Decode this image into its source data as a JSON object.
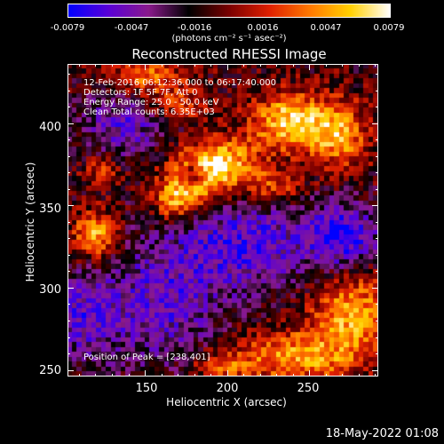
{
  "chart_data": {
    "type": "heatmap",
    "title": "Reconstructed RHESSI Image",
    "xlabel": "Heliocentric X (arcsec)",
    "ylabel": "Heliocentric Y (arcsec)",
    "xlim": [
      103,
      292
    ],
    "ylim": [
      246,
      436
    ],
    "x_ticks": [
      150,
      200,
      250
    ],
    "y_ticks": [
      250,
      300,
      350,
      400
    ],
    "colorbar": {
      "range": [
        -0.0079,
        0.0079
      ],
      "tick_values": [
        -0.0079,
        -0.0047,
        -0.0016,
        0.0016,
        0.0047,
        0.0079
      ],
      "tick_labels": [
        "-0.0079",
        "-0.0047",
        "-0.0016",
        "0.0016",
        "0.0047",
        "0.0079"
      ],
      "units": "(photons cm⁻² s⁻¹ asec⁻²)",
      "colors": [
        "#0000ff",
        "#5a00d8",
        "#8a1a8c",
        "#000000",
        "#7a0000",
        "#e02000",
        "#ff7800",
        "#ffd000",
        "#ffffff"
      ]
    },
    "grid_size": 64,
    "peak": [
      238,
      401
    ],
    "sources": [
      {
        "cx": 182,
        "cy": 365,
        "sx": 14,
        "sy": 12,
        "amp": 0.0068
      },
      {
        "cx": 200,
        "cy": 377,
        "sx": 15,
        "sy": 10,
        "amp": 0.006
      },
      {
        "cx": 168,
        "cy": 352,
        "sx": 9,
        "sy": 9,
        "amp": 0.005
      },
      {
        "cx": 180,
        "cy": 368,
        "sx": 5,
        "sy": 5,
        "amp": -0.0065
      },
      {
        "cx": 238,
        "cy": 401,
        "sx": 16,
        "sy": 12,
        "amp": 0.0075
      },
      {
        "cx": 268,
        "cy": 393,
        "sx": 13,
        "sy": 14,
        "amp": 0.006
      },
      {
        "cx": 228,
        "cy": 361,
        "sx": 13,
        "sy": 8,
        "amp": 0.0042
      },
      {
        "cx": 120,
        "cy": 332,
        "sx": 9,
        "sy": 10,
        "amp": 0.0068
      },
      {
        "cx": 125,
        "cy": 371,
        "sx": 8,
        "sy": 7,
        "amp": 0.0038
      },
      {
        "cx": 276,
        "cy": 285,
        "sx": 17,
        "sy": 17,
        "amp": 0.0062
      },
      {
        "cx": 243,
        "cy": 258,
        "sx": 26,
        "sy": 11,
        "amp": 0.006
      },
      {
        "cx": 196,
        "cy": 252,
        "sx": 14,
        "sy": 7,
        "amp": 0.0036
      },
      {
        "cx": 150,
        "cy": 428,
        "sx": 17,
        "sy": 9,
        "amp": 0.005
      },
      {
        "cx": 172,
        "cy": 411,
        "sx": 14,
        "sy": 7,
        "amp": 0.0032
      },
      {
        "cx": 212,
        "cy": 327,
        "sx": 30,
        "sy": 20,
        "amp": -0.005
      },
      {
        "cx": 271,
        "cy": 331,
        "sx": 15,
        "sy": 14,
        "amp": -0.006
      },
      {
        "cx": 160,
        "cy": 290,
        "sx": 26,
        "sy": 28,
        "amp": -0.0042
      },
      {
        "cx": 137,
        "cy": 400,
        "sx": 18,
        "sy": 16,
        "amp": -0.004
      },
      {
        "cx": 112,
        "cy": 282,
        "sx": 15,
        "sy": 19,
        "amp": -0.004
      }
    ]
  },
  "info": {
    "line1": "12-Feb-2016 06:12:36.000 to 06:17:40.000",
    "line2": "Detectors: 1F 5F 7F, Att 0",
    "line3": "Energy Range: 25.0 - 50.0 keV",
    "line4": "Clean     Total counts: 6.35E+03",
    "peak_text": "Position of Peak = [238,401]"
  },
  "footer": "18-May-2022 01:08"
}
